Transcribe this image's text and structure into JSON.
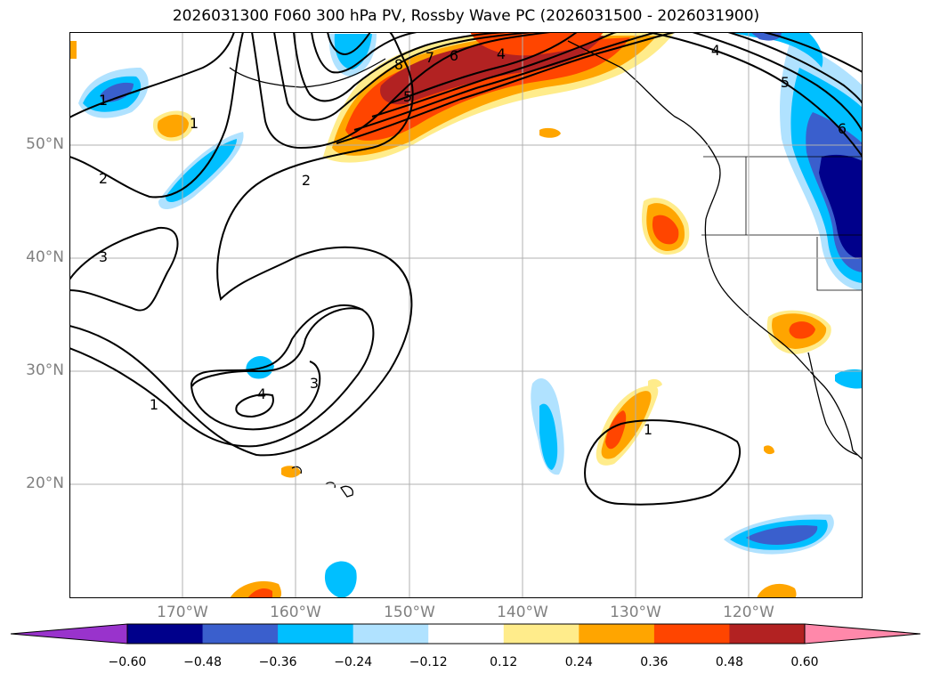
{
  "title": "2026031300 F060 300 hPa PV, Rossby Wave PC (2026031500 - 2026031900)",
  "lat_labels": [
    "50°N",
    "40°N",
    "30°N",
    "20°N"
  ],
  "lon_labels": [
    "170°W",
    "160°W",
    "150°W",
    "140°W",
    "130°W",
    "120°W"
  ],
  "contour_labels": [
    "1",
    "1",
    "2",
    "2",
    "3",
    "3",
    "4",
    "4",
    "5",
    "5",
    "6",
    "6",
    "7",
    "8",
    "1",
    "4",
    "1"
  ],
  "colorbar": {
    "ticks": [
      "−0.60",
      "−0.48",
      "−0.36",
      "−0.24",
      "−0.12",
      "0.12",
      "0.24",
      "0.36",
      "0.48",
      "0.60"
    ],
    "colors": [
      "#9933cc",
      "#00008b",
      "#3a5fcd",
      "#00bfff",
      "#b0e2ff",
      "#ffffff",
      "#ffec8b",
      "#ffa500",
      "#ff4500",
      "#b22222",
      "#ff88aa"
    ]
  }
}
